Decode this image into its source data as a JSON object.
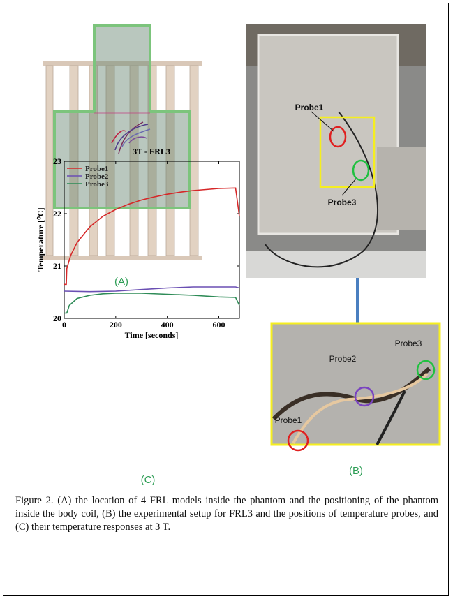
{
  "panels": {
    "a_label": "(A)",
    "b_label": "(B)",
    "c_label": "(C)"
  },
  "photo_top": {
    "labels": [
      "Probe1",
      "Probe3"
    ]
  },
  "photo_inset": {
    "labels": [
      "Probe1",
      "Probe2",
      "Probe3"
    ]
  },
  "chart_data": {
    "type": "line",
    "title": "3T - FRL3",
    "x_label": "Time [seconds]",
    "y_label": "Temperature [⁰C]",
    "xlim": [
      0,
      680
    ],
    "ylim": [
      20,
      23
    ],
    "xticks": [
      0,
      200,
      400,
      600
    ],
    "yticks": [
      20,
      21,
      22,
      23
    ],
    "legend": "top-left",
    "series": [
      {
        "name": "Probe1",
        "color": "#d62728",
        "x": [
          0,
          8,
          10,
          25,
          50,
          100,
          150,
          200,
          250,
          300,
          350,
          400,
          450,
          500,
          550,
          600,
          665,
          680
        ],
        "values": [
          20.65,
          20.65,
          20.95,
          21.2,
          21.45,
          21.75,
          21.95,
          22.08,
          22.18,
          22.26,
          22.32,
          22.37,
          22.41,
          22.44,
          22.46,
          22.48,
          22.49,
          21.95
        ]
      },
      {
        "name": "Probe2",
        "color": "#6a4fb3",
        "x": [
          0,
          100,
          200,
          300,
          400,
          500,
          600,
          665,
          680
        ],
        "values": [
          20.52,
          20.51,
          20.52,
          20.55,
          20.58,
          20.6,
          20.6,
          20.6,
          20.58
        ]
      },
      {
        "name": "Probe3",
        "color": "#2e8b57",
        "x": [
          0,
          10,
          20,
          50,
          100,
          150,
          200,
          300,
          400,
          500,
          600,
          665,
          680
        ],
        "values": [
          20.1,
          20.1,
          20.25,
          20.38,
          20.44,
          20.47,
          20.48,
          20.48,
          20.46,
          20.44,
          20.41,
          20.4,
          20.25
        ]
      }
    ]
  },
  "caption": "Figure 2. (A) the location of 4 FRL models inside the phantom and the positioning of the phantom inside the body coil, (B) the experimental setup for FRL3 and the positions of temperature probes, and (C) their temperature responses at 3 T."
}
